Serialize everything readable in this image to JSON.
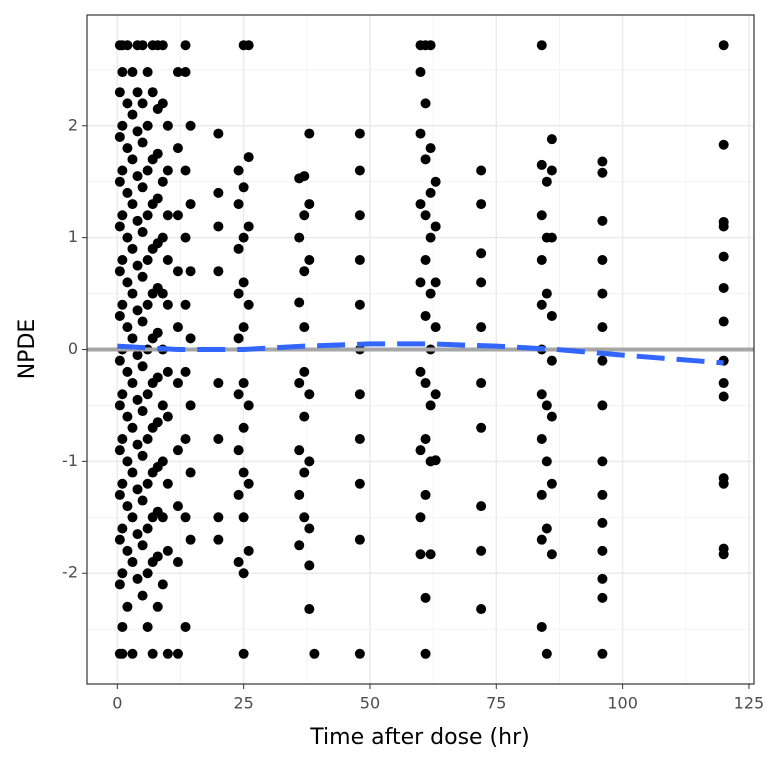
{
  "chart_data": {
    "type": "scatter",
    "xlabel": "Time after dose (hr)",
    "ylabel": "NPDE",
    "xlim": [
      -6,
      126
    ],
    "ylim": [
      -2.99,
      2.99
    ],
    "xticks": [
      0,
      25,
      50,
      75,
      100,
      125
    ],
    "yticks": [
      -2,
      -1,
      0,
      1,
      2
    ],
    "xminor": [
      12.5,
      37.5,
      62.5,
      87.5,
      112.5
    ],
    "yminor": [
      -2.5,
      -1.5,
      -0.5,
      0.5,
      1.5,
      2.5
    ],
    "grid": true,
    "color": "#000000",
    "hline": 0,
    "hline_color": "#a6a6a6",
    "trend": {
      "color": "#3366ff",
      "x": [
        0,
        12,
        25,
        37,
        50,
        62,
        75,
        87,
        100,
        120
      ],
      "y": [
        0.03,
        0.0,
        0.0,
        0.03,
        0.05,
        0.05,
        0.03,
        0.0,
        -0.05,
        -0.12
      ]
    },
    "points": [
      [
        0.5,
        2.72
      ],
      [
        0.5,
        2.3
      ],
      [
        0.5,
        1.9
      ],
      [
        0.5,
        1.5
      ],
      [
        0.5,
        1.1
      ],
      [
        0.5,
        0.7
      ],
      [
        0.5,
        0.3
      ],
      [
        0.5,
        -0.1
      ],
      [
        0.5,
        -0.5
      ],
      [
        0.5,
        -0.9
      ],
      [
        0.5,
        -1.3
      ],
      [
        0.5,
        -1.7
      ],
      [
        0.5,
        -2.1
      ],
      [
        0.5,
        -2.72
      ],
      [
        1,
        2.72
      ],
      [
        1,
        2.48
      ],
      [
        1,
        2.0
      ],
      [
        1,
        1.6
      ],
      [
        1,
        1.2
      ],
      [
        1,
        0.8
      ],
      [
        1,
        0.4
      ],
      [
        1,
        0.0
      ],
      [
        1,
        -0.4
      ],
      [
        1,
        -0.8
      ],
      [
        1,
        -1.2
      ],
      [
        1,
        -1.6
      ],
      [
        1,
        -2.0
      ],
      [
        1,
        -2.48
      ],
      [
        1,
        -2.72
      ],
      [
        2,
        2.72
      ],
      [
        2,
        2.2
      ],
      [
        2,
        1.8
      ],
      [
        2,
        1.4
      ],
      [
        2,
        1.0
      ],
      [
        2,
        0.6
      ],
      [
        2,
        0.2
      ],
      [
        2,
        -0.2
      ],
      [
        2,
        -0.6
      ],
      [
        2,
        -1.0
      ],
      [
        2,
        -1.4
      ],
      [
        2,
        -1.8
      ],
      [
        2,
        -2.3
      ],
      [
        3,
        2.48
      ],
      [
        3,
        2.1
      ],
      [
        3,
        1.7
      ],
      [
        3,
        1.3
      ],
      [
        3,
        0.9
      ],
      [
        3,
        0.5
      ],
      [
        3,
        0.1
      ],
      [
        3,
        -0.3
      ],
      [
        3,
        -0.7
      ],
      [
        3,
        -1.1
      ],
      [
        3,
        -1.5
      ],
      [
        3,
        -1.9
      ],
      [
        3,
        -2.72
      ],
      [
        4,
        2.72
      ],
      [
        4,
        2.3
      ],
      [
        4,
        1.95
      ],
      [
        4,
        1.55
      ],
      [
        4,
        1.15
      ],
      [
        4,
        0.75
      ],
      [
        4,
        0.35
      ],
      [
        4,
        -0.05
      ],
      [
        4,
        -0.45
      ],
      [
        4,
        -0.85
      ],
      [
        4,
        -1.25
      ],
      [
        4,
        -1.65
      ],
      [
        4,
        -2.05
      ],
      [
        5,
        2.72
      ],
      [
        5,
        2.2
      ],
      [
        5,
        1.85
      ],
      [
        5,
        1.45
      ],
      [
        5,
        1.05
      ],
      [
        5,
        0.65
      ],
      [
        5,
        0.25
      ],
      [
        5,
        -0.15
      ],
      [
        5,
        -0.55
      ],
      [
        5,
        -0.95
      ],
      [
        5,
        -1.35
      ],
      [
        5,
        -1.75
      ],
      [
        5,
        -2.2
      ],
      [
        6,
        2.48
      ],
      [
        6,
        2.0
      ],
      [
        6,
        1.6
      ],
      [
        6,
        1.2
      ],
      [
        6,
        0.8
      ],
      [
        6,
        0.4
      ],
      [
        6,
        0.0
      ],
      [
        6,
        -0.4
      ],
      [
        6,
        -0.8
      ],
      [
        6,
        -1.2
      ],
      [
        6,
        -1.6
      ],
      [
        6,
        -2.0
      ],
      [
        6,
        -2.48
      ],
      [
        7,
        2.72
      ],
      [
        7,
        2.3
      ],
      [
        7,
        1.7
      ],
      [
        7,
        1.3
      ],
      [
        7,
        0.9
      ],
      [
        7,
        0.5
      ],
      [
        7,
        0.1
      ],
      [
        7,
        -0.3
      ],
      [
        7,
        -0.7
      ],
      [
        7,
        -1.1
      ],
      [
        7,
        -1.5
      ],
      [
        7,
        -1.9
      ],
      [
        7,
        -2.72
      ],
      [
        8,
        2.72
      ],
      [
        8,
        2.15
      ],
      [
        8,
        1.75
      ],
      [
        8,
        1.35
      ],
      [
        8,
        0.95
      ],
      [
        8,
        0.55
      ],
      [
        8,
        0.15
      ],
      [
        8,
        -0.25
      ],
      [
        8,
        -0.65
      ],
      [
        8,
        -1.05
      ],
      [
        8,
        -1.45
      ],
      [
        8,
        -1.85
      ],
      [
        8,
        -2.3
      ],
      [
        9,
        2.72
      ],
      [
        9,
        2.2
      ],
      [
        9,
        1.5
      ],
      [
        9,
        1.0
      ],
      [
        9,
        0.5
      ],
      [
        9,
        0.0
      ],
      [
        9,
        -0.5
      ],
      [
        9,
        -1.0
      ],
      [
        9,
        -1.5
      ],
      [
        9,
        -2.1
      ],
      [
        10,
        2.0
      ],
      [
        10,
        1.6
      ],
      [
        10,
        1.2
      ],
      [
        10,
        0.8
      ],
      [
        10,
        0.4
      ],
      [
        10,
        -0.2
      ],
      [
        10,
        -0.6
      ],
      [
        10,
        -1.2
      ],
      [
        10,
        -1.8
      ],
      [
        10,
        -2.72
      ],
      [
        12,
        2.48
      ],
      [
        12,
        1.8
      ],
      [
        12,
        1.2
      ],
      [
        12,
        0.7
      ],
      [
        12,
        0.2
      ],
      [
        12,
        -0.3
      ],
      [
        12,
        -0.9
      ],
      [
        12,
        -1.4
      ],
      [
        12,
        -1.9
      ],
      [
        12,
        -2.72
      ],
      [
        13.5,
        2.72
      ],
      [
        13.5,
        2.48
      ],
      [
        13.5,
        1.6
      ],
      [
        13.5,
        1.0
      ],
      [
        13.5,
        0.4
      ],
      [
        13.5,
        -0.2
      ],
      [
        13.5,
        -0.8
      ],
      [
        13.5,
        -1.5
      ],
      [
        13.5,
        -2.48
      ],
      [
        14.5,
        2.0
      ],
      [
        14.5,
        1.3
      ],
      [
        14.5,
        0.7
      ],
      [
        14.5,
        0.1
      ],
      [
        14.5,
        -0.5
      ],
      [
        14.5,
        -1.1
      ],
      [
        14.5,
        -1.7
      ],
      [
        20,
        1.93
      ],
      [
        20,
        1.4
      ],
      [
        20,
        1.1
      ],
      [
        20,
        0.7
      ],
      [
        20,
        -0.3
      ],
      [
        20,
        -0.8
      ],
      [
        20,
        -1.5
      ],
      [
        20,
        -1.7
      ],
      [
        24,
        1.6
      ],
      [
        24,
        1.3
      ],
      [
        24,
        0.9
      ],
      [
        24,
        0.5
      ],
      [
        24,
        0.1
      ],
      [
        24,
        -0.4
      ],
      [
        24,
        -0.9
      ],
      [
        24,
        -1.3
      ],
      [
        24,
        -1.9
      ],
      [
        25,
        2.72
      ],
      [
        25,
        1.45
      ],
      [
        25,
        1.0
      ],
      [
        25,
        0.6
      ],
      [
        25,
        0.2
      ],
      [
        25,
        -0.3
      ],
      [
        25,
        -0.7
      ],
      [
        25,
        -1.1
      ],
      [
        25,
        -1.5
      ],
      [
        25,
        -2.0
      ],
      [
        25,
        -2.72
      ],
      [
        26,
        2.72
      ],
      [
        26,
        1.72
      ],
      [
        26,
        1.1
      ],
      [
        26,
        0.4
      ],
      [
        26,
        -0.5
      ],
      [
        26,
        -1.2
      ],
      [
        26,
        -1.8
      ],
      [
        36,
        1.53
      ],
      [
        36,
        1.0
      ],
      [
        36,
        0.42
      ],
      [
        36,
        -0.3
      ],
      [
        36,
        -0.9
      ],
      [
        36,
        -1.3
      ],
      [
        36,
        -1.75
      ],
      [
        37,
        1.55
      ],
      [
        37,
        1.2
      ],
      [
        37,
        0.7
      ],
      [
        37,
        0.2
      ],
      [
        37,
        -0.2
      ],
      [
        37,
        -0.6
      ],
      [
        37,
        -1.1
      ],
      [
        37,
        -1.5
      ],
      [
        38,
        1.93
      ],
      [
        38,
        1.3
      ],
      [
        38,
        0.8
      ],
      [
        38,
        -0.4
      ],
      [
        38,
        -1.0
      ],
      [
        38,
        -1.6
      ],
      [
        38,
        -2.32
      ],
      [
        38,
        -1.93
      ],
      [
        39,
        -2.72
      ],
      [
        48,
        1.93
      ],
      [
        48,
        1.6
      ],
      [
        48,
        1.2
      ],
      [
        48,
        0.8
      ],
      [
        48,
        0.4
      ],
      [
        48,
        0.0
      ],
      [
        48,
        -0.4
      ],
      [
        48,
        -0.8
      ],
      [
        48,
        -1.2
      ],
      [
        48,
        -1.7
      ],
      [
        48,
        -2.72
      ],
      [
        60,
        2.72
      ],
      [
        60,
        2.48
      ],
      [
        60,
        1.93
      ],
      [
        60,
        1.3
      ],
      [
        60,
        0.6
      ],
      [
        60,
        -0.2
      ],
      [
        60,
        -0.9
      ],
      [
        60,
        -1.5
      ],
      [
        60,
        -1.83
      ],
      [
        61,
        2.72
      ],
      [
        61,
        2.2
      ],
      [
        61,
        1.7
      ],
      [
        61,
        1.2
      ],
      [
        61,
        0.8
      ],
      [
        61,
        0.3
      ],
      [
        61,
        -0.3
      ],
      [
        61,
        -0.8
      ],
      [
        61,
        -1.3
      ],
      [
        61,
        -2.22
      ],
      [
        61,
        -2.72
      ],
      [
        62,
        2.72
      ],
      [
        62,
        1.8
      ],
      [
        62,
        1.4
      ],
      [
        62,
        1.0
      ],
      [
        62,
        0.5
      ],
      [
        62,
        0.0
      ],
      [
        62,
        -0.5
      ],
      [
        62,
        -1.0
      ],
      [
        62,
        -1.83
      ],
      [
        63,
        1.5
      ],
      [
        63,
        1.1
      ],
      [
        63,
        0.6
      ],
      [
        63,
        0.2
      ],
      [
        63,
        -0.4
      ],
      [
        63,
        -0.99
      ],
      [
        72,
        1.6
      ],
      [
        72,
        1.3
      ],
      [
        72,
        0.86
      ],
      [
        72,
        0.6
      ],
      [
        72,
        0.2
      ],
      [
        72,
        -0.3
      ],
      [
        72,
        -0.7
      ],
      [
        72,
        -1.4
      ],
      [
        72,
        -1.8
      ],
      [
        72,
        -2.32
      ],
      [
        84,
        2.72
      ],
      [
        84,
        1.65
      ],
      [
        84,
        1.2
      ],
      [
        84,
        0.8
      ],
      [
        84,
        0.4
      ],
      [
        84,
        0.0
      ],
      [
        84,
        -0.4
      ],
      [
        84,
        -0.8
      ],
      [
        84,
        -1.3
      ],
      [
        84,
        -1.7
      ],
      [
        84,
        -2.48
      ],
      [
        85,
        1.5
      ],
      [
        85,
        1.0
      ],
      [
        85,
        0.5
      ],
      [
        85,
        -0.5
      ],
      [
        85,
        -1.0
      ],
      [
        85,
        -1.6
      ],
      [
        85,
        -2.72
      ],
      [
        86,
        1.88
      ],
      [
        86,
        1.6
      ],
      [
        86,
        1.0
      ],
      [
        86,
        0.3
      ],
      [
        86,
        -0.1
      ],
      [
        86,
        -0.6
      ],
      [
        86,
        -1.2
      ],
      [
        86,
        -1.83
      ],
      [
        96,
        1.68
      ],
      [
        96,
        1.58
      ],
      [
        96,
        1.15
      ],
      [
        96,
        0.8
      ],
      [
        96,
        0.5
      ],
      [
        96,
        0.2
      ],
      [
        96,
        -0.1
      ],
      [
        96,
        -0.5
      ],
      [
        96,
        -1.0
      ],
      [
        96,
        -1.3
      ],
      [
        96,
        -1.55
      ],
      [
        96,
        -1.8
      ],
      [
        96,
        -2.05
      ],
      [
        96,
        -2.22
      ],
      [
        96,
        -2.72
      ],
      [
        120,
        2.72
      ],
      [
        120,
        1.83
      ],
      [
        120,
        1.14
      ],
      [
        120,
        1.1
      ],
      [
        120,
        0.83
      ],
      [
        120,
        0.55
      ],
      [
        120,
        0.25
      ],
      [
        120,
        -0.1
      ],
      [
        120,
        -0.3
      ],
      [
        120,
        -0.42
      ],
      [
        120,
        -1.15
      ],
      [
        120,
        -1.2
      ],
      [
        120,
        -1.78
      ],
      [
        120,
        -1.83
      ]
    ]
  }
}
